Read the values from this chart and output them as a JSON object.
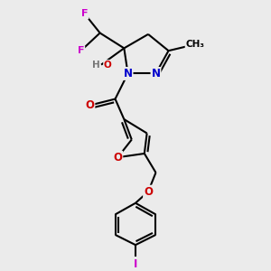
{
  "background_color": "#ebebeb",
  "atoms": {
    "C": "#000000",
    "N": "#0000cc",
    "O": "#cc0000",
    "F": "#cc00cc",
    "I": "#cc00cc",
    "H": "#777777"
  },
  "bond_color": "#000000",
  "bond_width": 1.5,
  "figsize": [
    3.0,
    3.0
  ],
  "dpi": 100
}
